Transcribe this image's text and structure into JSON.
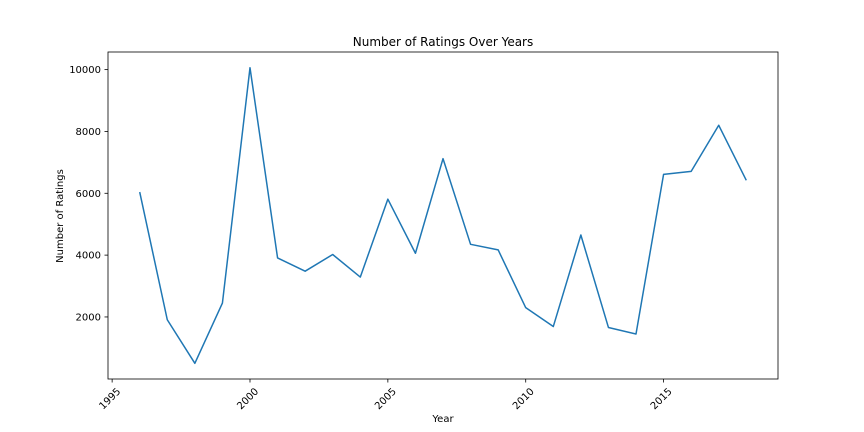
{
  "chart_data": {
    "type": "line",
    "title": "Number of Ratings Over Years",
    "xlabel": "Year",
    "ylabel": "Number of Ratings",
    "x": [
      1996,
      1997,
      1998,
      1999,
      2000,
      2001,
      2002,
      2003,
      2004,
      2005,
      2006,
      2007,
      2008,
      2009,
      2010,
      2011,
      2012,
      2013,
      2014,
      2015,
      2016,
      2017,
      2018
    ],
    "series": [
      {
        "values": [
          6040,
          1910,
          500,
          2450,
          10060,
          3910,
          3480,
          4020,
          3290,
          5810,
          4060,
          7120,
          4350,
          4170,
          2300,
          1690,
          4650,
          1660,
          1450,
          6610,
          6710,
          8200,
          6420
        ],
        "color": "#1f77b4"
      }
    ],
    "xlim": [
      1994.85,
      2019.15
    ],
    "ylim": [
      -7,
      10570
    ],
    "xticks": [
      1995,
      2000,
      2005,
      2010,
      2015
    ],
    "yticks": [
      2000,
      4000,
      6000,
      8000,
      10000
    ],
    "xtick_labels": [
      "1995",
      "2000",
      "2005",
      "2010",
      "2015"
    ],
    "ytick_labels": [
      "2000",
      "4000",
      "6000",
      "8000",
      "10000"
    ],
    "grid": false,
    "legend": "none"
  }
}
